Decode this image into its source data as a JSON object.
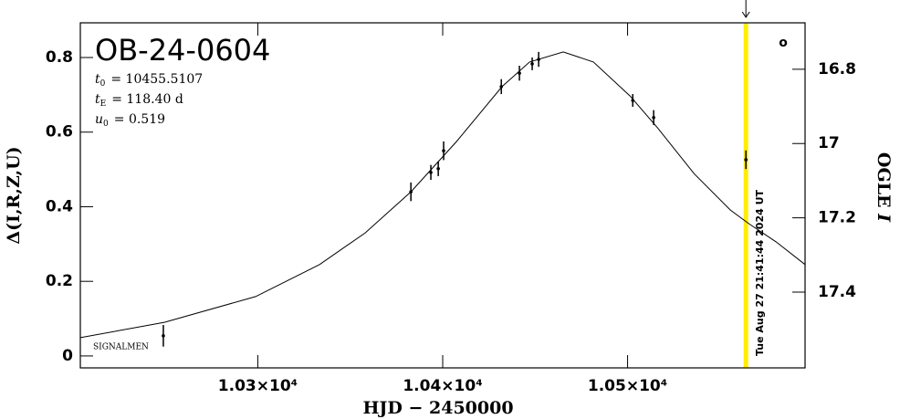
{
  "chart_data": {
    "type": "scatter",
    "title": "OB-24-0604",
    "params": [
      {
        "symbol": "t",
        "sub": "0",
        "text": "= 10455.5107"
      },
      {
        "symbol": "t",
        "sub": "E",
        "text": "= 118.40 d"
      },
      {
        "symbol": "u",
        "sub": "0",
        "text": "= 0.519"
      }
    ],
    "footnote": "SIGNALMEN",
    "corner_mark": "o",
    "x_label": "HJD − 2450000",
    "y_label": "Δ(I,R,Z,U)",
    "y2_label": "OGLE",
    "y2_label_band": "I",
    "xlim": [
      10204,
      10596
    ],
    "xticks": [
      {
        "value": 10300,
        "label": "1.03×10⁴"
      },
      {
        "value": 10400,
        "label": "1.04×10⁴"
      },
      {
        "value": 10500,
        "label": "1.05×10⁴"
      }
    ],
    "ylim": [
      -0.032,
      0.893
    ],
    "yticks": [
      0,
      0.2,
      0.4,
      0.6,
      0.8
    ],
    "y2lim": [
      17.604,
      16.675
    ],
    "y2ticks": [
      16.8,
      17,
      17.2,
      17.4
    ],
    "points": {
      "color": "#000000",
      "x": [
        10248.9,
        10382.8,
        10393.6,
        10397.6,
        10400.5,
        10431.7,
        10441.5,
        10448.4,
        10451.9,
        10502.8,
        10514.1,
        10564.0
      ],
      "values": [
        0.054,
        0.44,
        0.492,
        0.502,
        0.55,
        0.722,
        0.758,
        0.783,
        0.795,
        0.685,
        0.639,
        0.526
      ],
      "errors": [
        0.029,
        0.025,
        0.02,
        0.02,
        0.025,
        0.02,
        0.02,
        0.017,
        0.02,
        0.017,
        0.02,
        0.025
      ]
    },
    "model": {
      "color": "#000000",
      "x": [
        10204,
        10249.4,
        10298.8,
        10333.4,
        10358.1,
        10382.8,
        10407.5,
        10432.1,
        10447,
        10465.2,
        10481.5,
        10501.3,
        10516.1,
        10535.9,
        10555.6,
        10565.5,
        10580.3,
        10596
      ],
      "values": [
        0.049,
        0.09,
        0.159,
        0.245,
        0.33,
        0.44,
        0.575,
        0.722,
        0.788,
        0.815,
        0.788,
        0.697,
        0.612,
        0.489,
        0.391,
        0.355,
        0.306,
        0.245
      ]
    },
    "now_marker": {
      "x": 10564,
      "color": "#ffee00",
      "label": "Tue Aug 27 21:41:44 2024 UT",
      "label_color": "#888888"
    }
  }
}
